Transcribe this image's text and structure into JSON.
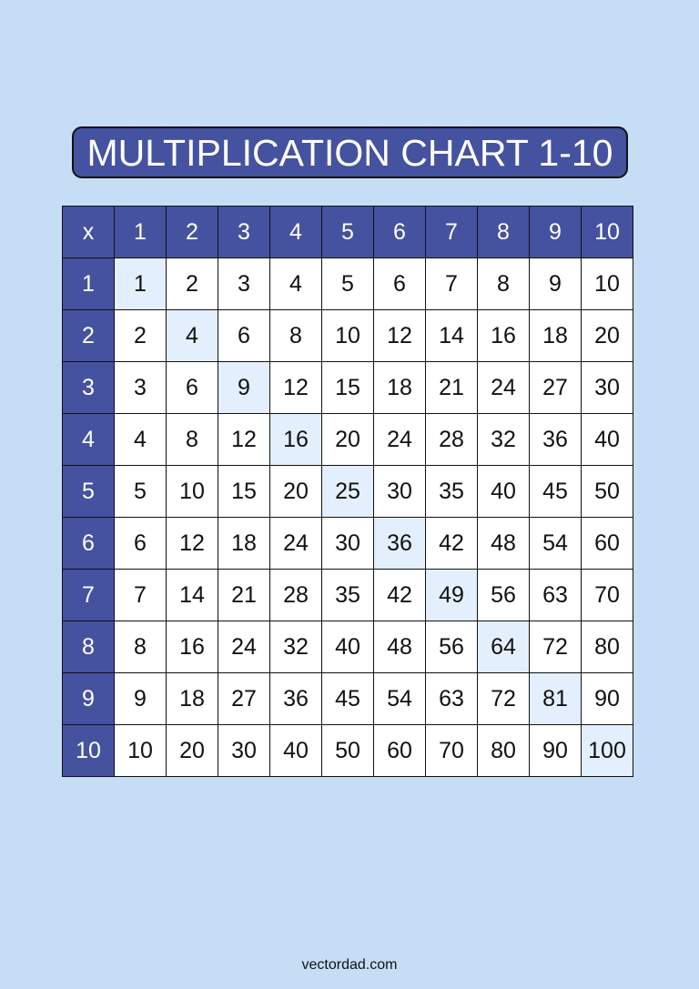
{
  "title": "MULTIPLICATION CHART 1-10",
  "corner_label": "x",
  "column_headers": [
    "1",
    "2",
    "3",
    "4",
    "5",
    "6",
    "7",
    "8",
    "9",
    "10"
  ],
  "row_headers": [
    "1",
    "2",
    "3",
    "4",
    "5",
    "6",
    "7",
    "8",
    "9",
    "10"
  ],
  "rows": [
    [
      "1",
      "2",
      "3",
      "4",
      "5",
      "6",
      "7",
      "8",
      "9",
      "10"
    ],
    [
      "2",
      "4",
      "6",
      "8",
      "10",
      "12",
      "14",
      "16",
      "18",
      "20"
    ],
    [
      "3",
      "6",
      "9",
      "12",
      "15",
      "18",
      "21",
      "24",
      "27",
      "30"
    ],
    [
      "4",
      "8",
      "12",
      "16",
      "20",
      "24",
      "28",
      "32",
      "36",
      "40"
    ],
    [
      "5",
      "10",
      "15",
      "20",
      "25",
      "30",
      "35",
      "40",
      "45",
      "50"
    ],
    [
      "6",
      "12",
      "18",
      "24",
      "30",
      "36",
      "42",
      "48",
      "54",
      "60"
    ],
    [
      "7",
      "14",
      "21",
      "28",
      "35",
      "42",
      "49",
      "56",
      "63",
      "70"
    ],
    [
      "8",
      "16",
      "24",
      "32",
      "40",
      "48",
      "56",
      "64",
      "72",
      "80"
    ],
    [
      "9",
      "18",
      "27",
      "36",
      "45",
      "54",
      "63",
      "72",
      "81",
      "90"
    ],
    [
      "10",
      "20",
      "30",
      "40",
      "50",
      "60",
      "70",
      "80",
      "90",
      "100"
    ]
  ],
  "colors": {
    "background": "#c5def6",
    "header": "#4552a0",
    "diagonal_highlight": "#e3effc"
  },
  "footer": "vectordad.com"
}
